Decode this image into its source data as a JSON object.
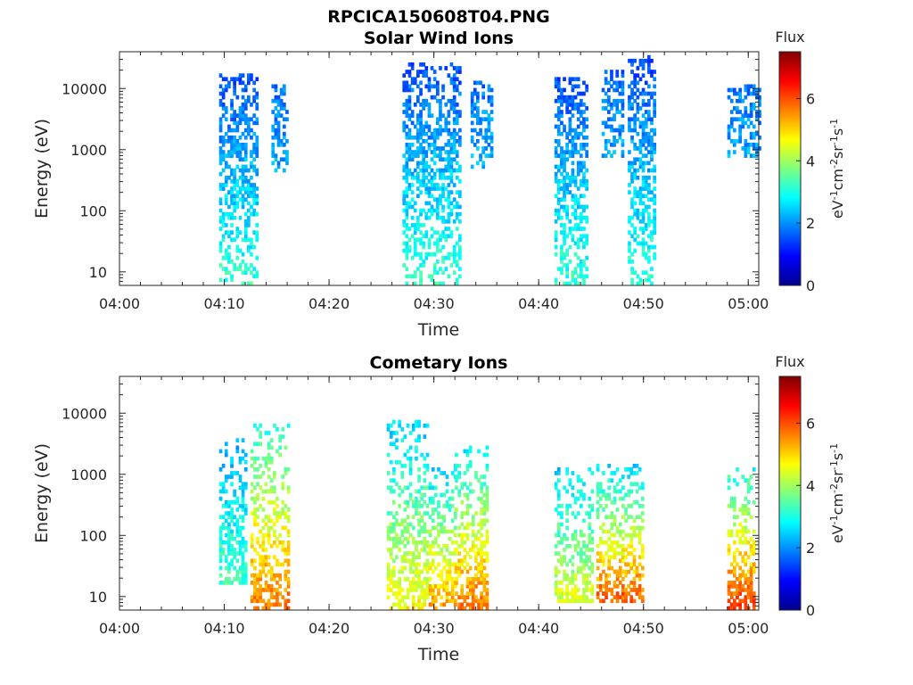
{
  "figure": {
    "filename": "RPCICA150608T04.PNG"
  },
  "colors": {
    "axis": "#262626",
    "background": "#ffffff",
    "colormap": "jet"
  },
  "chart_data": [
    {
      "type": "heatmap",
      "title": "Solar Wind Ions",
      "xlabel": "Time",
      "ylabel": "Energy (eV)",
      "x_range": [
        "04:00",
        "05:01"
      ],
      "x_ticks": [
        "04:00",
        "04:10",
        "04:20",
        "04:30",
        "04:40",
        "04:50",
        "05:00"
      ],
      "y_scale": "log",
      "y_range": [
        6,
        40000
      ],
      "y_ticks": [
        10,
        100,
        1000,
        10000
      ],
      "y_tick_labels": [
        "10",
        "100",
        "1000",
        "10000"
      ],
      "colorbar": {
        "label": "Flux",
        "unit": "eV-1cm-2sr-1s-1",
        "range": [
          0,
          7.5
        ],
        "ticks": [
          0,
          2,
          4,
          6
        ]
      },
      "bursts": [
        {
          "t_start": "04:09:30",
          "t_end": "04:13:00",
          "e_min": 6,
          "e_max": 18000,
          "flux_high": 1.5,
          "flux_low": 3.2
        },
        {
          "t_start": "04:14:30",
          "t_end": "04:16:00",
          "e_min": 400,
          "e_max": 11000,
          "flux_high": 1.8,
          "flux_low": 2.2
        },
        {
          "t_start": "04:27:00",
          "t_end": "04:32:30",
          "e_min": 6,
          "e_max": 28000,
          "flux_high": 1.5,
          "flux_low": 3.2
        },
        {
          "t_start": "04:33:30",
          "t_end": "04:35:30",
          "e_min": 500,
          "e_max": 14000,
          "flux_high": 1.7,
          "flux_low": 2.3
        },
        {
          "t_start": "04:41:30",
          "t_end": "04:44:30",
          "e_min": 6,
          "e_max": 16000,
          "flux_high": 1.5,
          "flux_low": 3.2
        },
        {
          "t_start": "04:46:00",
          "t_end": "04:48:00",
          "e_min": 700,
          "e_max": 20000,
          "flux_high": 1.7,
          "flux_low": 2.2
        },
        {
          "t_start": "04:48:30",
          "t_end": "04:51:00",
          "e_min": 6,
          "e_max": 35000,
          "flux_high": 1.4,
          "flux_low": 3.2
        },
        {
          "t_start": "04:58:00",
          "t_end": "05:01:00",
          "e_min": 700,
          "e_max": 11000,
          "flux_high": 1.8,
          "flux_low": 2.2
        }
      ]
    },
    {
      "type": "heatmap",
      "title": "Cometary Ions",
      "xlabel": "Time",
      "ylabel": "Energy (eV)",
      "x_range": [
        "04:00",
        "05:01"
      ],
      "x_ticks": [
        "04:00",
        "04:10",
        "04:20",
        "04:30",
        "04:40",
        "04:50",
        "05:00"
      ],
      "y_scale": "log",
      "y_range": [
        6,
        40000
      ],
      "y_ticks": [
        10,
        100,
        1000,
        10000
      ],
      "y_tick_labels": [
        "10",
        "100",
        "1000",
        "10000"
      ],
      "colorbar": {
        "label": "Flux",
        "unit": "eV-1cm-2sr-1s-1",
        "range": [
          0,
          7.5
        ],
        "ticks": [
          0,
          2,
          4,
          6
        ]
      },
      "bursts": [
        {
          "t_start": "04:09:30",
          "t_end": "04:12:00",
          "e_min": 15,
          "e_max": 4000,
          "flux_high": 2.2,
          "flux_low": 3.3
        },
        {
          "t_start": "04:12:30",
          "t_end": "04:16:00",
          "e_min": 6,
          "e_max": 7000,
          "flux_high": 3.0,
          "flux_low": 5.8
        },
        {
          "t_start": "04:25:30",
          "t_end": "04:29:30",
          "e_min": 6,
          "e_max": 8000,
          "flux_high": 2.4,
          "flux_low": 4.8
        },
        {
          "t_start": "04:29:30",
          "t_end": "04:32:00",
          "e_min": 6,
          "e_max": 1500,
          "flux_high": 2.4,
          "flux_low": 5.5
        },
        {
          "t_start": "04:32:00",
          "t_end": "04:35:00",
          "e_min": 6,
          "e_max": 3000,
          "flux_high": 2.6,
          "flux_low": 5.8
        },
        {
          "t_start": "04:41:30",
          "t_end": "04:45:00",
          "e_min": 8,
          "e_max": 1300,
          "flux_high": 2.5,
          "flux_low": 4.5
        },
        {
          "t_start": "04:45:30",
          "t_end": "04:50:00",
          "e_min": 8,
          "e_max": 1500,
          "flux_high": 2.5,
          "flux_low": 6.0
        },
        {
          "t_start": "04:58:00",
          "t_end": "05:00:30",
          "e_min": 6,
          "e_max": 1200,
          "flux_high": 3.0,
          "flux_low": 6.2
        }
      ]
    }
  ]
}
